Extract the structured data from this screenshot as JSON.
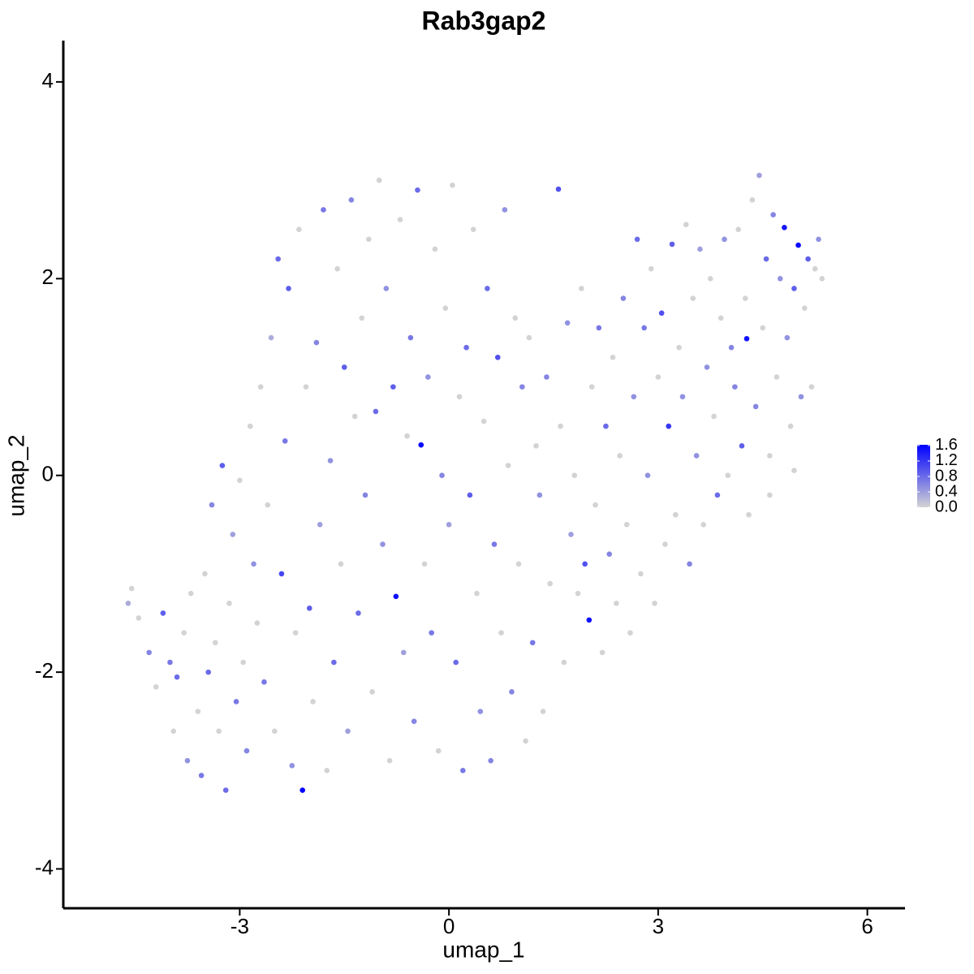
{
  "chart_data": {
    "type": "scatter",
    "title": "Rab3gap2",
    "x_label": "umap_1",
    "y_label": "umap_2",
    "xlim": [
      -5.53,
      6.54
    ],
    "ylim": [
      -4.4,
      4.42
    ],
    "xticks": [
      -3,
      0,
      3,
      6
    ],
    "yticks": [
      -4,
      -2,
      0,
      2,
      4
    ],
    "grid": false,
    "color_low": "#d3d3d3",
    "color_high": "#0000ff",
    "clim": [
      0,
      1.62
    ],
    "cticks": [
      {
        "value": 0,
        "label": "0.0"
      },
      {
        "value": 0.4,
        "label": "0.4"
      },
      {
        "value": 0.8,
        "label": "0.8"
      },
      {
        "value": 1.2,
        "label": "1.2"
      },
      {
        "value": 1.6,
        "label": "1.6"
      }
    ],
    "x": [
      -4.6,
      -4.55,
      -4.45,
      -4.3,
      -4.2,
      -4.1,
      -4.0,
      -3.95,
      -3.9,
      -3.8,
      -3.75,
      -3.7,
      -3.6,
      -3.55,
      -3.5,
      -3.45,
      -3.4,
      -3.35,
      -3.3,
      -3.25,
      -3.2,
      -3.15,
      -3.1,
      -3.05,
      -3.0,
      -2.95,
      -2.9,
      -2.85,
      -2.8,
      -2.75,
      -2.7,
      -2.65,
      -2.6,
      -2.55,
      -2.5,
      -2.45,
      -2.4,
      -2.35,
      -2.3,
      -2.25,
      -2.2,
      -2.15,
      -2.1,
      -2.05,
      -2.0,
      -1.95,
      -1.9,
      -1.85,
      -1.8,
      -1.75,
      -1.7,
      -1.65,
      -1.6,
      -1.55,
      -1.5,
      -1.45,
      -1.4,
      -1.35,
      -1.3,
      -1.25,
      -1.2,
      -1.15,
      -1.1,
      -1.05,
      -1.0,
      -0.95,
      -0.9,
      -0.85,
      -0.8,
      -0.76,
      -0.7,
      -0.65,
      -0.6,
      -0.55,
      -0.5,
      -0.45,
      -0.4,
      -0.35,
      -0.3,
      -0.25,
      -0.2,
      -0.15,
      -0.1,
      -0.05,
      0.0,
      0.05,
      0.1,
      0.15,
      0.2,
      0.25,
      0.3,
      0.35,
      0.4,
      0.45,
      0.5,
      0.55,
      0.6,
      0.65,
      0.7,
      0.75,
      0.8,
      0.85,
      0.9,
      0.95,
      1.0,
      1.05,
      1.1,
      1.15,
      1.2,
      1.25,
      1.3,
      1.35,
      1.4,
      1.45,
      1.57,
      1.6,
      1.65,
      1.7,
      1.75,
      1.8,
      1.85,
      1.9,
      1.95,
      2.01,
      2.05,
      2.1,
      2.15,
      2.2,
      2.25,
      2.3,
      2.35,
      2.4,
      2.45,
      2.5,
      2.55,
      2.6,
      2.65,
      2.7,
      2.75,
      2.8,
      2.85,
      2.9,
      2.95,
      3.0,
      3.05,
      3.1,
      3.15,
      3.2,
      3.25,
      3.3,
      3.35,
      3.4,
      3.45,
      3.5,
      3.55,
      3.6,
      3.65,
      3.7,
      3.75,
      3.8,
      3.85,
      3.9,
      3.95,
      4.0,
      4.05,
      4.1,
      4.15,
      4.2,
      4.25,
      4.27,
      4.3,
      4.35,
      4.4,
      4.45,
      4.5,
      4.55,
      4.6,
      4.65,
      4.7,
      4.75,
      4.81,
      4.85,
      4.9,
      4.95,
      5.01,
      5.05,
      5.1,
      5.15,
      5.2,
      5.25,
      5.3,
      5.35,
      4.95,
      4.6
    ],
    "y": [
      -1.3,
      -1.15,
      -1.45,
      -1.8,
      -2.15,
      -1.4,
      -1.9,
      -2.6,
      -2.05,
      -1.6,
      -2.9,
      -1.2,
      -2.4,
      -3.05,
      -1.0,
      -2.0,
      -0.3,
      -1.7,
      -2.6,
      0.1,
      -3.2,
      -1.3,
      -0.6,
      -2.3,
      -0.05,
      -1.9,
      -2.8,
      0.5,
      -0.9,
      -1.5,
      0.9,
      -2.1,
      -0.3,
      1.4,
      -2.6,
      2.2,
      -1.0,
      0.35,
      1.9,
      -2.95,
      -1.6,
      2.5,
      -3.2,
      0.9,
      -1.35,
      -2.3,
      1.35,
      -0.5,
      2.7,
      -3.0,
      0.15,
      -1.9,
      2.1,
      -0.9,
      1.1,
      -2.6,
      2.8,
      0.6,
      -1.4,
      1.6,
      -0.2,
      2.4,
      -2.2,
      0.65,
      3.0,
      -0.7,
      1.9,
      -2.9,
      0.9,
      -1.23,
      2.6,
      -1.8,
      0.4,
      1.4,
      -2.5,
      2.9,
      0.31,
      -0.9,
      1.0,
      -1.6,
      2.3,
      -2.8,
      0.0,
      1.7,
      -0.5,
      2.95,
      -1.9,
      0.8,
      -3.0,
      1.3,
      -0.2,
      2.5,
      -1.2,
      -2.4,
      0.55,
      1.9,
      -2.9,
      -0.7,
      1.2,
      -1.6,
      2.7,
      0.1,
      -2.2,
      1.6,
      -0.9,
      0.9,
      -2.7,
      1.4,
      -1.7,
      0.3,
      -0.2,
      -2.4,
      1.0,
      -1.1,
      2.91,
      0.5,
      -1.9,
      1.55,
      -0.6,
      0.0,
      -1.2,
      1.9,
      -0.9,
      -1.47,
      0.9,
      -0.3,
      1.5,
      -1.8,
      0.5,
      -0.8,
      1.2,
      -1.3,
      0.2,
      1.8,
      -0.5,
      -1.6,
      0.8,
      2.4,
      -1.0,
      1.5,
      0.0,
      2.1,
      -1.3,
      1.0,
      1.65,
      -0.7,
      0.5,
      2.35,
      -0.4,
      1.3,
      0.8,
      2.55,
      -0.9,
      1.8,
      0.2,
      2.3,
      -0.5,
      1.1,
      2.0,
      0.6,
      -0.2,
      1.6,
      2.4,
      0.0,
      1.3,
      0.9,
      2.5,
      0.3,
      1.8,
      1.39,
      -0.4,
      2.8,
      0.7,
      3.05,
      1.5,
      2.2,
      0.2,
      2.65,
      1.0,
      2.0,
      2.52,
      1.4,
      0.5,
      1.9,
      2.34,
      0.8,
      1.7,
      2.2,
      0.9,
      2.1,
      2.4,
      2.0,
      0.05,
      -0.2
    ],
    "values": [
      0.3,
      0,
      0,
      0.6,
      0,
      0.9,
      0.7,
      0,
      0.8,
      0,
      0.5,
      0,
      0,
      0.7,
      0,
      0.8,
      0.6,
      0,
      0,
      0.9,
      0.8,
      0,
      0.4,
      0.7,
      0,
      0,
      0.6,
      0,
      0.5,
      0,
      0,
      0.7,
      0,
      0.3,
      0,
      0.8,
      1.1,
      0.7,
      0.9,
      0.5,
      0,
      0,
      1.6,
      0,
      0.9,
      0,
      0.6,
      0.4,
      0.7,
      0,
      0.5,
      0.8,
      0,
      0,
      0.9,
      0.4,
      0.6,
      0,
      0.8,
      0,
      0.6,
      0,
      0,
      0.8,
      0,
      0.5,
      0.5,
      0,
      0.9,
      1.5,
      0,
      0.4,
      0,
      0.7,
      0.6,
      0.8,
      1.55,
      0,
      0.5,
      0.7,
      0,
      0,
      0.6,
      0,
      0.4,
      0,
      0.8,
      0,
      0.7,
      0.8,
      0.9,
      0,
      0,
      0.5,
      0,
      0.8,
      0.6,
      0.7,
      1.0,
      0,
      0.5,
      0,
      0.6,
      0,
      0,
      0.6,
      0,
      0,
      0.7,
      0,
      0.5,
      0,
      0.6,
      0,
      1.0,
      0,
      0,
      0.5,
      0.4,
      0,
      0,
      0,
      1.0,
      1.5,
      0,
      0,
      0.7,
      0,
      0.8,
      0.6,
      0,
      0,
      0,
      0.6,
      0,
      0,
      0.5,
      0.8,
      0,
      0.7,
      0.5,
      0,
      0,
      0,
      1.0,
      0,
      1.2,
      0.9,
      0,
      0,
      0.5,
      0,
      0.6,
      0,
      0.5,
      0.4,
      0,
      0.5,
      0,
      0,
      0.8,
      0,
      0.5,
      0,
      0.6,
      0.6,
      0,
      0.9,
      0,
      1.5,
      0,
      0,
      0.6,
      0.4,
      0,
      0.8,
      0,
      0.6,
      0,
      0.5,
      1.45,
      0.5,
      0,
      0.9,
      1.55,
      0.5,
      0,
      0.9,
      0,
      0,
      0.5,
      0,
      0,
      0
    ]
  }
}
